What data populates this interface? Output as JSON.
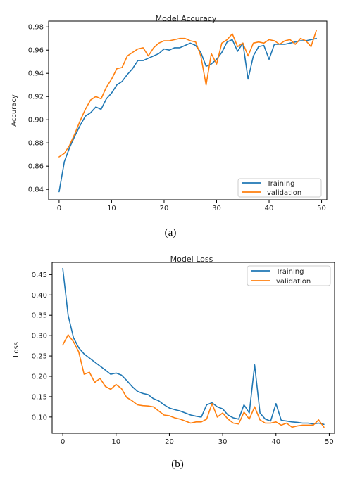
{
  "chart_data": [
    {
      "type": "line",
      "title": "Model Accuracy",
      "caption": "(a)",
      "xlabel": "",
      "ylabel": "Accuracy",
      "xlim": [
        -2,
        51
      ],
      "ylim": [
        0.831,
        0.985
      ],
      "xticks": [
        0,
        10,
        20,
        30,
        40,
        50
      ],
      "yticks": [
        0.84,
        0.86,
        0.88,
        0.9,
        0.92,
        0.94,
        0.96,
        0.98
      ],
      "ytick_labels": [
        "0.84",
        "0.86",
        "0.88",
        "0.90",
        "0.92",
        "0.94",
        "0.96",
        "0.98"
      ],
      "legend_position": "lower-right",
      "grid": false,
      "x": [
        0,
        1,
        2,
        3,
        4,
        5,
        6,
        7,
        8,
        9,
        10,
        11,
        12,
        13,
        14,
        15,
        16,
        17,
        18,
        19,
        20,
        21,
        22,
        23,
        24,
        25,
        26,
        27,
        28,
        29,
        30,
        31,
        32,
        33,
        34,
        35,
        36,
        37,
        38,
        39,
        40,
        41,
        42,
        43,
        44,
        45,
        46,
        47,
        48,
        49
      ],
      "series": [
        {
          "name": "Training",
          "color": "#1f77b4",
          "values": [
            0.838,
            0.864,
            0.876,
            0.886,
            0.895,
            0.903,
            0.906,
            0.911,
            0.909,
            0.918,
            0.923,
            0.93,
            0.933,
            0.939,
            0.944,
            0.951,
            0.951,
            0.953,
            0.955,
            0.957,
            0.961,
            0.96,
            0.962,
            0.962,
            0.964,
            0.966,
            0.964,
            0.958,
            0.946,
            0.948,
            0.952,
            0.958,
            0.967,
            0.969,
            0.959,
            0.966,
            0.935,
            0.955,
            0.963,
            0.964,
            0.952,
            0.965,
            0.965,
            0.965,
            0.966,
            0.967,
            0.968,
            0.968,
            0.969,
            0.97
          ]
        },
        {
          "name": "validation",
          "color": "#ff7f0e",
          "values": [
            0.868,
            0.871,
            0.878,
            0.888,
            0.899,
            0.909,
            0.917,
            0.92,
            0.918,
            0.928,
            0.935,
            0.944,
            0.945,
            0.955,
            0.958,
            0.961,
            0.962,
            0.955,
            0.962,
            0.966,
            0.968,
            0.968,
            0.969,
            0.97,
            0.97,
            0.968,
            0.967,
            0.955,
            0.93,
            0.957,
            0.948,
            0.966,
            0.969,
            0.974,
            0.963,
            0.966,
            0.955,
            0.966,
            0.967,
            0.966,
            0.969,
            0.968,
            0.965,
            0.968,
            0.969,
            0.965,
            0.97,
            0.968,
            0.963,
            0.977
          ]
        }
      ]
    },
    {
      "type": "line",
      "title": "Model Loss",
      "caption": "(b)",
      "xlabel": "",
      "ylabel": "Loss",
      "xlim": [
        -2,
        51
      ],
      "ylim": [
        0.06,
        0.48
      ],
      "xticks": [
        0,
        10,
        20,
        30,
        40,
        50
      ],
      "yticks": [
        0.1,
        0.15,
        0.2,
        0.25,
        0.3,
        0.35,
        0.4,
        0.45
      ],
      "ytick_labels": [
        "0.10",
        "0.15",
        "0.20",
        "0.25",
        "0.30",
        "0.35",
        "0.40",
        "0.45"
      ],
      "legend_position": "top-right",
      "grid": false,
      "x": [
        0,
        1,
        2,
        3,
        4,
        5,
        6,
        7,
        8,
        9,
        10,
        11,
        12,
        13,
        14,
        15,
        16,
        17,
        18,
        19,
        20,
        21,
        22,
        23,
        24,
        25,
        26,
        27,
        28,
        29,
        30,
        31,
        32,
        33,
        34,
        35,
        36,
        37,
        38,
        39,
        40,
        41,
        42,
        43,
        44,
        45,
        46,
        47,
        48,
        49
      ],
      "series": [
        {
          "name": "Training",
          "color": "#1f77b4",
          "values": [
            0.465,
            0.35,
            0.295,
            0.27,
            0.255,
            0.245,
            0.235,
            0.225,
            0.215,
            0.205,
            0.208,
            0.203,
            0.19,
            0.175,
            0.163,
            0.158,
            0.155,
            0.145,
            0.14,
            0.13,
            0.122,
            0.118,
            0.115,
            0.11,
            0.105,
            0.102,
            0.1,
            0.13,
            0.135,
            0.125,
            0.12,
            0.105,
            0.098,
            0.095,
            0.13,
            0.11,
            0.228,
            0.11,
            0.095,
            0.09,
            0.133,
            0.092,
            0.09,
            0.088,
            0.087,
            0.085,
            0.085,
            0.083,
            0.085,
            0.082
          ]
        },
        {
          "name": "validation",
          "color": "#ff7f0e",
          "values": [
            0.277,
            0.302,
            0.285,
            0.26,
            0.205,
            0.21,
            0.185,
            0.195,
            0.175,
            0.168,
            0.18,
            0.17,
            0.148,
            0.14,
            0.13,
            0.128,
            0.127,
            0.125,
            0.115,
            0.105,
            0.103,
            0.098,
            0.095,
            0.09,
            0.085,
            0.088,
            0.088,
            0.095,
            0.133,
            0.1,
            0.11,
            0.095,
            0.085,
            0.083,
            0.112,
            0.095,
            0.125,
            0.093,
            0.085,
            0.085,
            0.088,
            0.08,
            0.085,
            0.075,
            0.078,
            0.08,
            0.08,
            0.08,
            0.093,
            0.075
          ]
        }
      ]
    }
  ]
}
